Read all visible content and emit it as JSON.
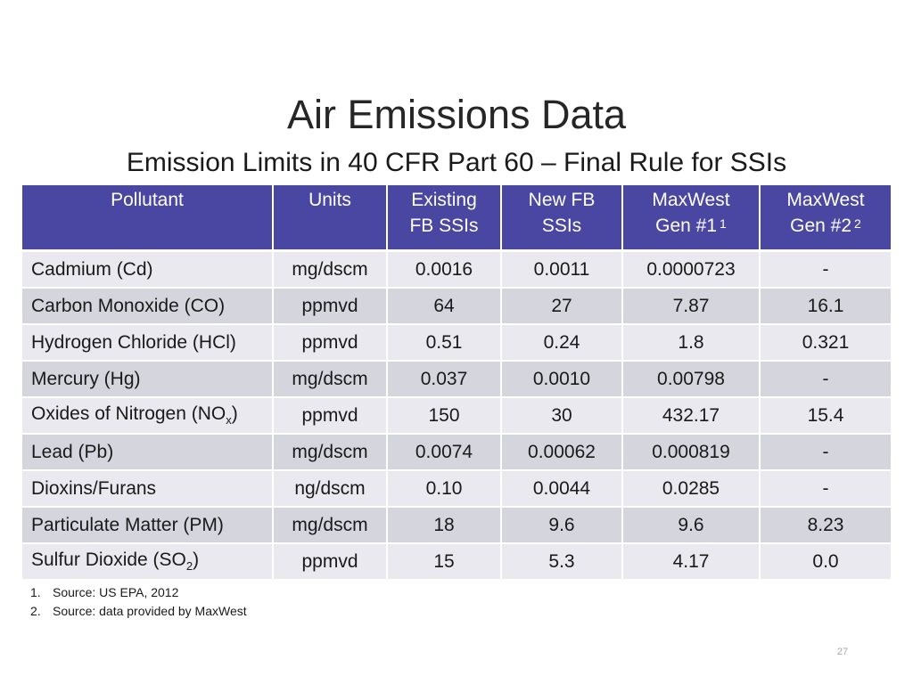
{
  "title": "Air Emissions Data",
  "subtitle": "Emission Limits in 40 CFR Part 60 – Final Rule for SSIs",
  "table": {
    "headers": {
      "pollutant": "Pollutant",
      "units": "Units",
      "existing_line1": "Existing",
      "existing_line2": "FB SSIs",
      "newfb_line1": "New FB",
      "newfb_line2": "SSIs",
      "gen1_line1": "MaxWest",
      "gen1_line2": "Gen #1",
      "gen1_ref": "1",
      "gen2_line1": "MaxWest",
      "gen2_line2": "Gen #2",
      "gen2_ref": "2"
    },
    "rows": [
      {
        "pollutant": "Cadmium (Cd)",
        "units": "mg/dscm",
        "existing": "0.0016",
        "new_fb": "0.0011",
        "gen1": "0.0000723",
        "gen2": "-"
      },
      {
        "pollutant": "Carbon Monoxide (CO)",
        "units": "ppmvd",
        "existing": "64",
        "new_fb": "27",
        "gen1": "7.87",
        "gen2": "16.1"
      },
      {
        "pollutant": "Hydrogen Chloride (HCl)",
        "units": "ppmvd",
        "existing": "0.51",
        "new_fb": "0.24",
        "gen1": "1.8",
        "gen2": "0.321"
      },
      {
        "pollutant": "Mercury (Hg)",
        "units": "mg/dscm",
        "existing": "0.037",
        "new_fb": "0.0010",
        "gen1": "0.00798",
        "gen2": "-"
      },
      {
        "pollutant_prefix": "Oxides of Nitrogen (NO",
        "pollutant_sub": "x",
        "pollutant_suffix": ")",
        "units": "ppmvd",
        "existing": "150",
        "new_fb": "30",
        "gen1": "432.17",
        "gen2": "15.4"
      },
      {
        "pollutant": "Lead (Pb)",
        "units": "mg/dscm",
        "existing": "0.0074",
        "new_fb": "0.00062",
        "gen1": "0.000819",
        "gen2": "-"
      },
      {
        "pollutant": "Dioxins/Furans",
        "units": "ng/dscm",
        "existing": "0.10",
        "new_fb": "0.0044",
        "gen1": "0.0285",
        "gen2": "-"
      },
      {
        "pollutant": "Particulate Matter (PM)",
        "units": "mg/dscm",
        "existing": "18",
        "new_fb": "9.6",
        "gen1": "9.6",
        "gen2": "8.23"
      },
      {
        "pollutant_prefix": "Sulfur Dioxide (SO",
        "pollutant_sub": "2",
        "pollutant_suffix": ")",
        "units": "ppmvd",
        "existing": "15",
        "new_fb": "5.3",
        "gen1": "4.17",
        "gen2": "0.0"
      }
    ]
  },
  "footnotes": [
    {
      "num": "1.",
      "text": "Source: US EPA, 2012"
    },
    {
      "num": "2.",
      "text": "Source: data provided by MaxWest"
    }
  ],
  "page_number": "27",
  "colors": {
    "header_bg": "#4a47a3",
    "row_light": "#e9e9ef",
    "row_dark": "#d5d5de"
  }
}
